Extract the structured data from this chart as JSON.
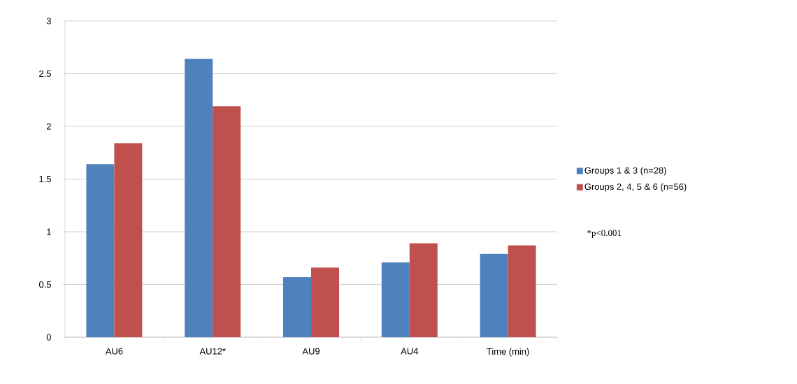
{
  "chart_data": {
    "type": "bar",
    "categories": [
      "AU6",
      "AU12*",
      "AU9",
      "AU4",
      "Time (min)"
    ],
    "series": [
      {
        "name": "Groups 1 & 3 (n=28)",
        "color": "#4f81bd",
        "values": [
          1.64,
          2.64,
          0.57,
          0.71,
          0.79
        ]
      },
      {
        "name": "Groups 2, 4, 5 & 6 (n=56)",
        "color": "#c0504d",
        "values": [
          1.84,
          2.19,
          0.66,
          0.89,
          0.87
        ]
      }
    ],
    "ylim": [
      0,
      3
    ],
    "yticks": [
      0,
      0.5,
      1,
      1.5,
      2,
      2.5,
      3
    ],
    "grid": "y",
    "legend": "right",
    "annotations": [
      "*p<0.001"
    ]
  }
}
